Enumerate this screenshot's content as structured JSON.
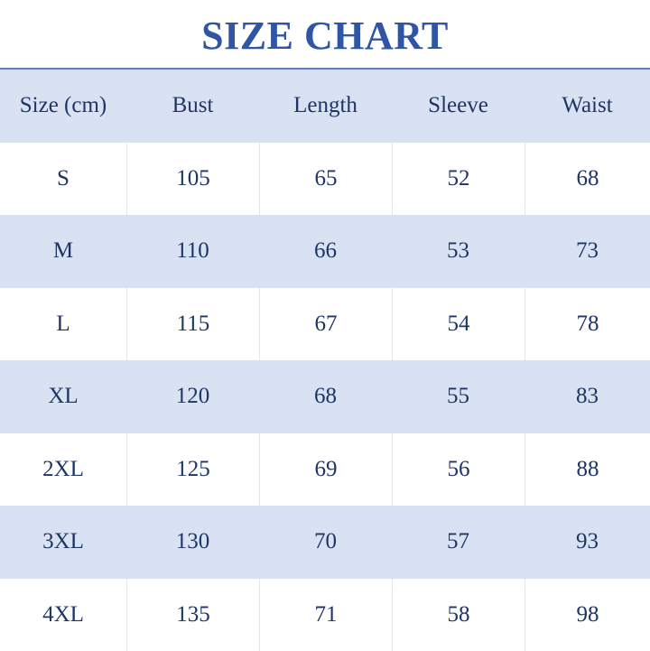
{
  "title": "SIZE CHART",
  "colors": {
    "title": "#2f55a4",
    "header_bg": "#d9e2f3",
    "stripe_bg": "#d9e2f3",
    "rule": "#5b7ecb",
    "text": "#1f3566"
  },
  "chart_data": {
    "type": "table",
    "title": "SIZE CHART",
    "columns": [
      "Size (cm)",
      "Bust",
      "Length",
      "Sleeve",
      "Waist"
    ],
    "rows": [
      [
        "S",
        "105",
        "65",
        "52",
        "68"
      ],
      [
        "M",
        "110",
        "66",
        "53",
        "73"
      ],
      [
        "L",
        "115",
        "67",
        "54",
        "78"
      ],
      [
        "XL",
        "120",
        "68",
        "55",
        "83"
      ],
      [
        "2XL",
        "125",
        "69",
        "56",
        "88"
      ],
      [
        "3XL",
        "130",
        "70",
        "57",
        "93"
      ],
      [
        "4XL",
        "135",
        "71",
        "58",
        "98"
      ]
    ]
  }
}
